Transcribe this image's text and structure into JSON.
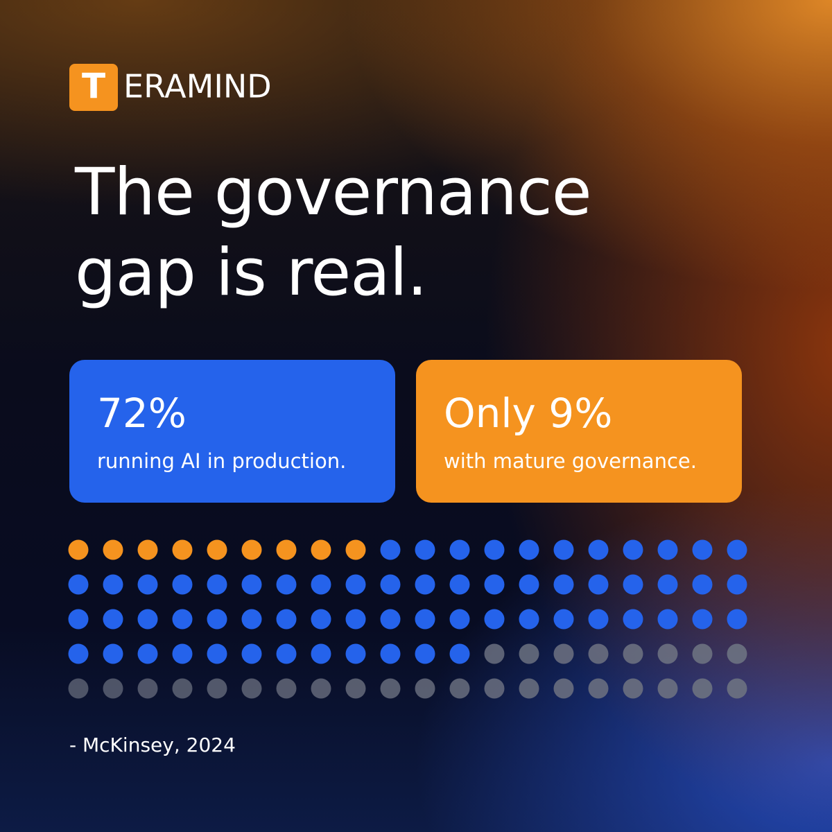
{
  "logo_initial": "T",
  "logo_rest": "ERAMIND",
  "chart_data": {
    "type": "waffle",
    "title": "The governance gap is real.",
    "categories": [
      "running AI in production.",
      "with mature governance."
    ],
    "values": [
      72,
      9
    ],
    "value_labels": [
      "72%",
      "Only 9%"
    ],
    "colors": [
      "#2563eb",
      "#f5931f"
    ],
    "total": 100,
    "remainder_color": "#6b7080",
    "source": "- McKinsey, 2024"
  }
}
